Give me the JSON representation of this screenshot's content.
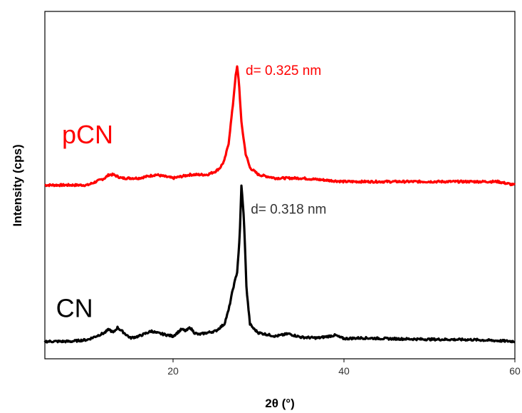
{
  "chart_data": {
    "type": "line",
    "title": "",
    "xlabel": "2θ (°)",
    "ylabel": "Intensity (cps)",
    "xlim": [
      5,
      60
    ],
    "x_ticks": [
      "20",
      "40",
      "60"
    ],
    "y_ticks": [],
    "grid": false,
    "colors": {
      "pCN": "#ff0000",
      "CN": "#000000"
    },
    "series": [
      {
        "name": "pCN",
        "x": [
          5,
          8,
          10,
          11,
          12,
          12.5,
          13,
          14,
          16,
          18,
          20,
          22,
          24,
          25,
          25.5,
          26,
          26.5,
          27,
          27.3,
          27.5,
          27.7,
          28,
          28.5,
          29,
          30,
          32,
          35,
          40,
          45,
          50,
          55,
          58,
          60
        ],
        "y": [
          0.5,
          0.5,
          0.5,
          0.51,
          0.52,
          0.53,
          0.53,
          0.52,
          0.52,
          0.53,
          0.52,
          0.53,
          0.53,
          0.54,
          0.55,
          0.57,
          0.62,
          0.73,
          0.81,
          0.84,
          0.8,
          0.68,
          0.59,
          0.55,
          0.53,
          0.52,
          0.52,
          0.51,
          0.51,
          0.51,
          0.51,
          0.51,
          0.5
        ]
      },
      {
        "name": "CN",
        "x": [
          5,
          8,
          10,
          11,
          12,
          12.5,
          13,
          13.5,
          14,
          15,
          16,
          17,
          17.5,
          18,
          19,
          20,
          21,
          21.5,
          22,
          22.5,
          23,
          24,
          25,
          26,
          26.5,
          27,
          27.5,
          27.8,
          28,
          28.3,
          28.6,
          29,
          29.5,
          30,
          31,
          32,
          33.5,
          35,
          37,
          39,
          39.5,
          40,
          42,
          45,
          50,
          55,
          60
        ],
        "y": [
          0.05,
          0.05,
          0.055,
          0.065,
          0.075,
          0.085,
          0.075,
          0.09,
          0.08,
          0.06,
          0.065,
          0.075,
          0.08,
          0.075,
          0.07,
          0.065,
          0.085,
          0.08,
          0.09,
          0.075,
          0.07,
          0.075,
          0.08,
          0.1,
          0.14,
          0.2,
          0.25,
          0.35,
          0.5,
          0.4,
          0.2,
          0.1,
          0.085,
          0.075,
          0.07,
          0.065,
          0.072,
          0.062,
          0.06,
          0.068,
          0.062,
          0.058,
          0.06,
          0.058,
          0.056,
          0.055,
          0.05
        ]
      }
    ],
    "annotations": [
      {
        "series": "pCN",
        "text": "d= 0.325 nm",
        "x": 28.0,
        "y": 0.83
      },
      {
        "series": "CN",
        "text": "d= 0.318 nm",
        "x": 28.6,
        "y": 0.43
      }
    ],
    "series_labels": [
      {
        "series": "pCN",
        "text": "pCN",
        "x": 7.0,
        "y": 0.62
      },
      {
        "series": "CN",
        "text": "CN",
        "x": 6.3,
        "y": 0.12
      }
    ]
  }
}
